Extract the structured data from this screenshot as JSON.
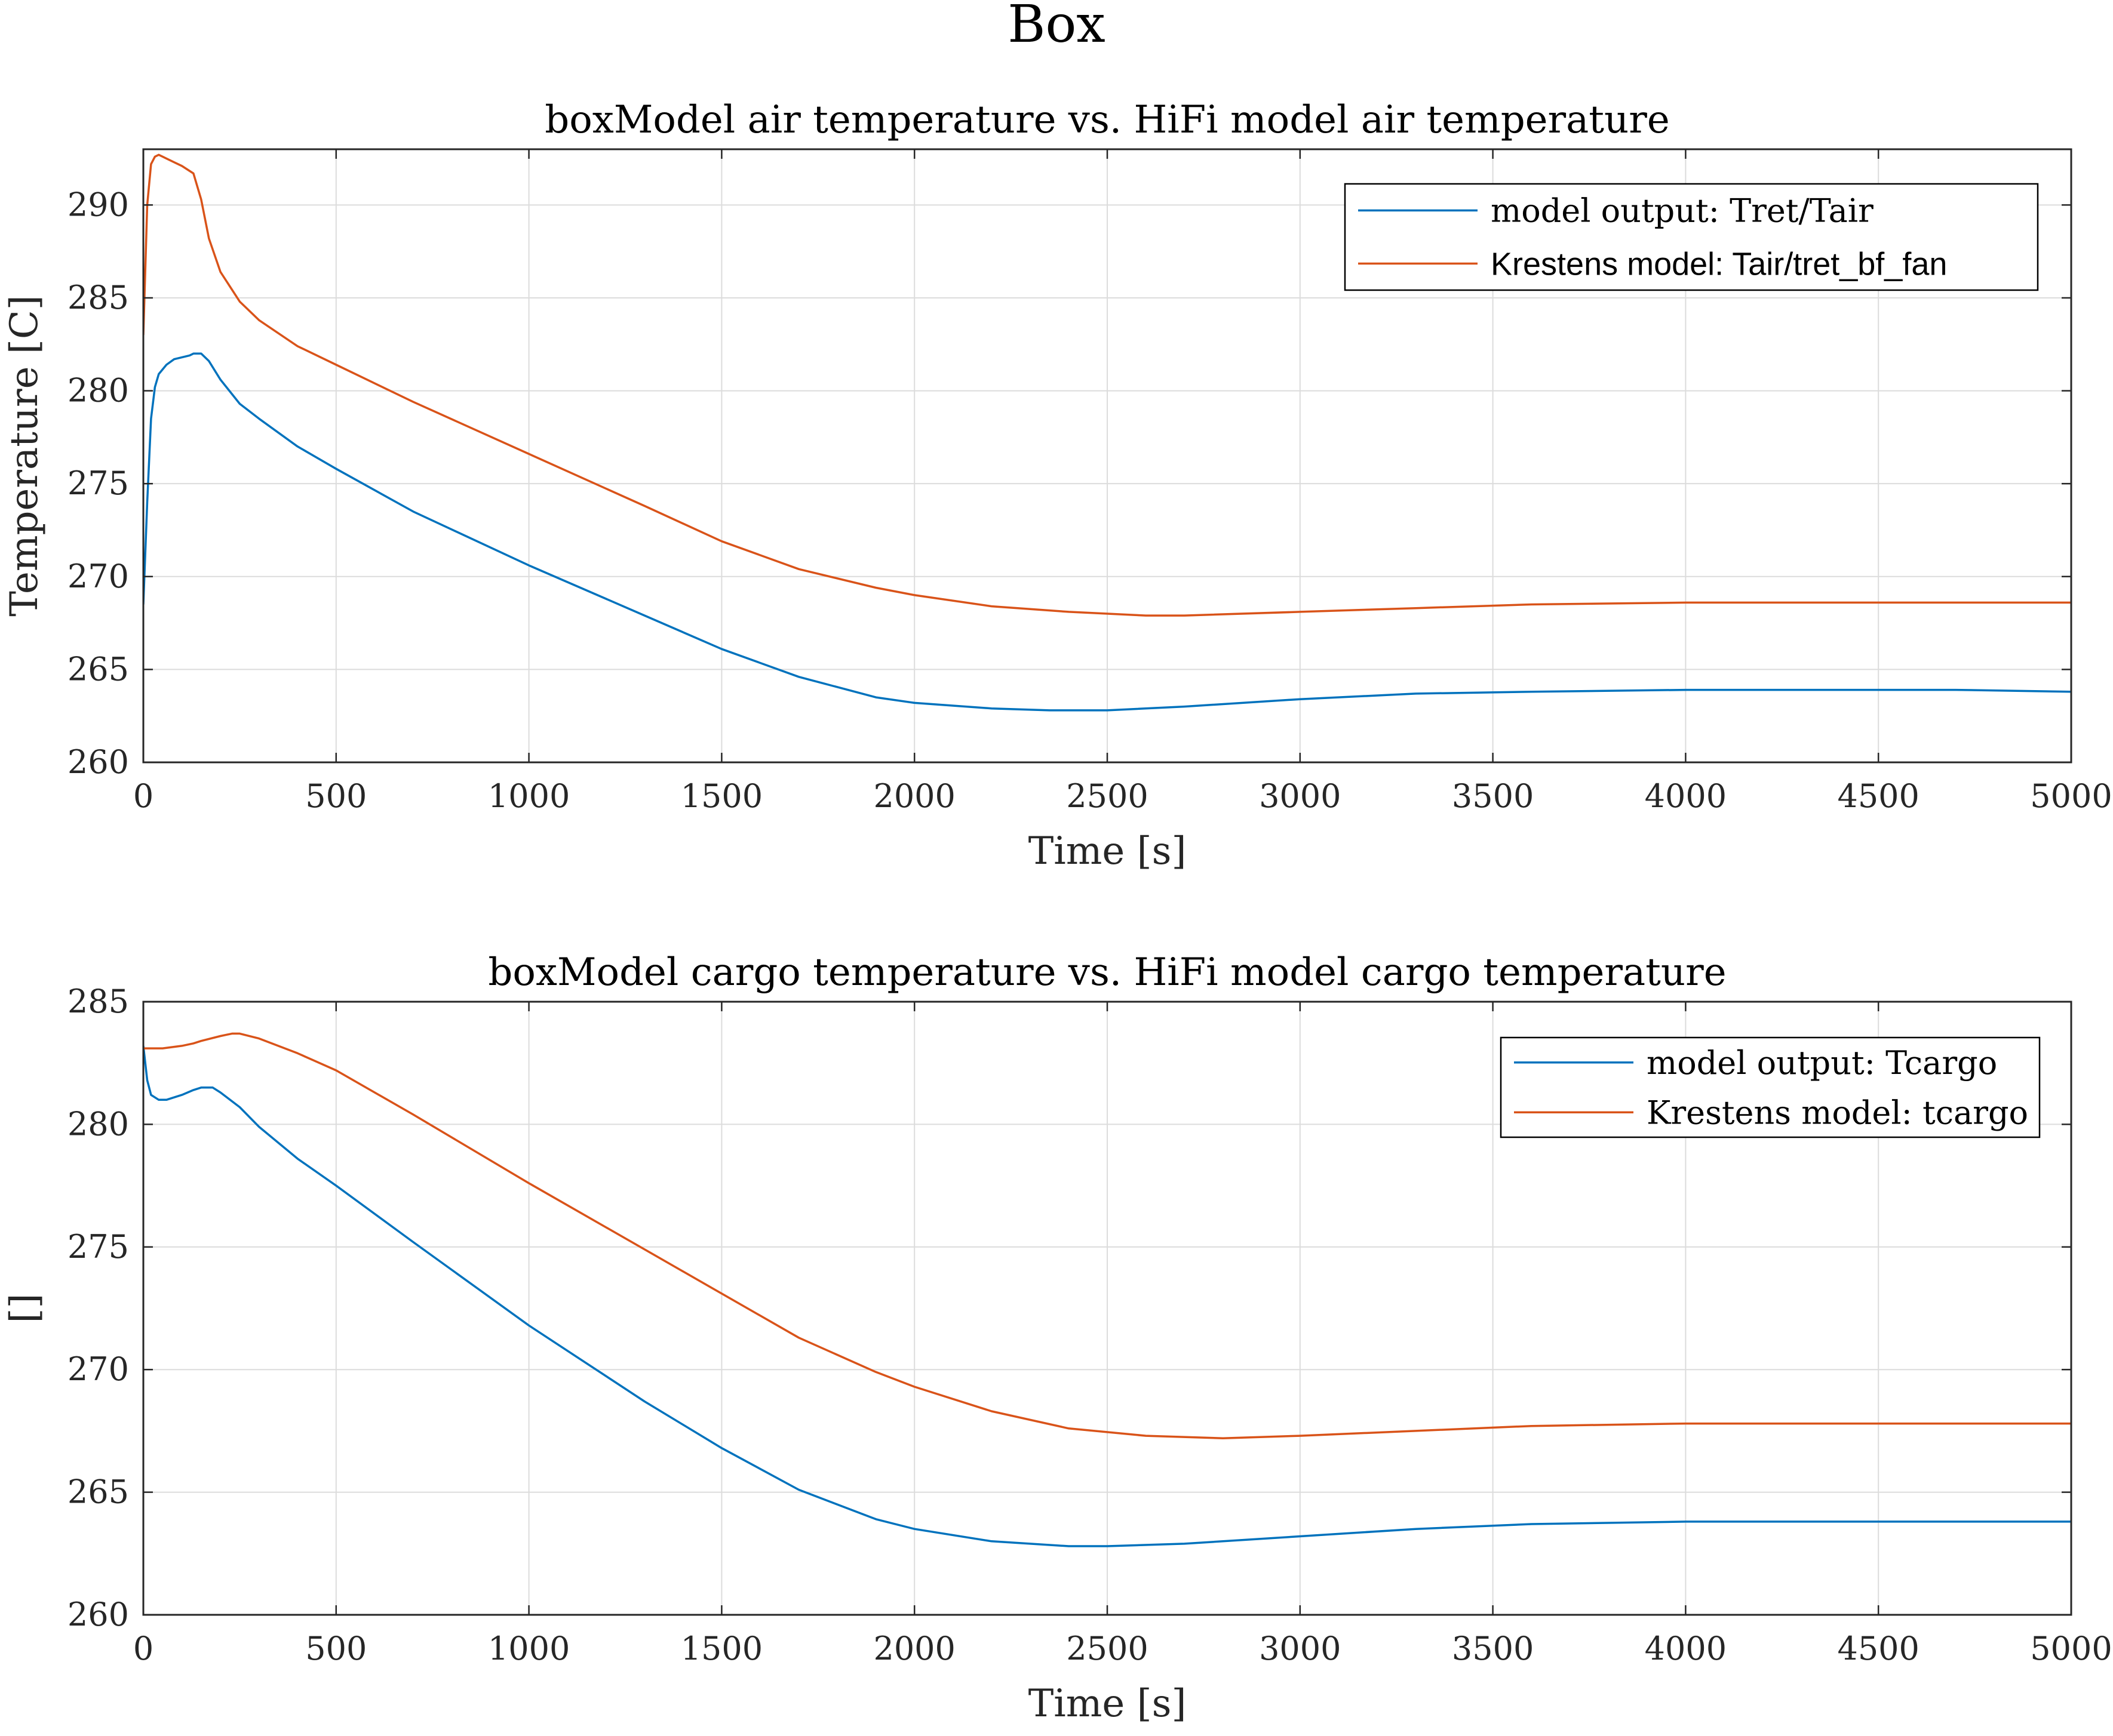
{
  "figure": {
    "suptitle": "Box"
  },
  "colors": {
    "series1": "#0072BD",
    "series2": "#D95319",
    "grid": "#dcdcdc",
    "axis": "#262626"
  },
  "chart_data": [
    {
      "type": "line",
      "title": "boxModel air temperature vs. HiFi model air temperature",
      "xlabel": "Time [s]",
      "ylabel": "Temperature [C]",
      "xlim": [
        0,
        5000
      ],
      "ylim": [
        260,
        293
      ],
      "xticks": [
        0,
        500,
        1000,
        1500,
        2000,
        2500,
        3000,
        3500,
        4000,
        4500,
        5000
      ],
      "yticks": [
        260,
        265,
        270,
        275,
        280,
        285,
        290
      ],
      "grid": true,
      "legend_position": "top-right",
      "series": [
        {
          "name": "model output: Tret/Tair",
          "legend_font": "serif",
          "x": [
            0,
            10,
            20,
            30,
            40,
            60,
            80,
            100,
            120,
            130,
            150,
            170,
            200,
            250,
            300,
            400,
            500,
            700,
            1000,
            1300,
            1500,
            1700,
            1900,
            2000,
            2200,
            2350,
            2500,
            2700,
            3000,
            3300,
            3600,
            4000,
            4300,
            4700,
            5000
          ],
          "y": [
            268.5,
            274.0,
            278.5,
            280.2,
            280.9,
            281.4,
            281.7,
            281.8,
            281.9,
            282.0,
            282.0,
            281.6,
            280.6,
            279.3,
            278.5,
            277.0,
            275.8,
            273.5,
            270.6,
            267.9,
            266.1,
            264.6,
            263.5,
            263.2,
            262.9,
            262.8,
            262.8,
            263.0,
            263.4,
            263.7,
            263.8,
            263.9,
            263.9,
            263.9,
            263.8
          ]
        },
        {
          "name": "Krestens model: Tair/tret_bf_fan",
          "legend_font": "sans",
          "x": [
            0,
            10,
            20,
            30,
            40,
            50,
            60,
            80,
            100,
            130,
            150,
            170,
            200,
            250,
            300,
            400,
            500,
            700,
            1000,
            1300,
            1500,
            1700,
            1900,
            2000,
            2200,
            2400,
            2600,
            2700,
            3000,
            3300,
            3600,
            4000,
            4300,
            4700,
            5000
          ],
          "y": [
            283.0,
            290.0,
            292.2,
            292.6,
            292.7,
            292.6,
            292.5,
            292.3,
            292.1,
            291.7,
            290.3,
            288.2,
            286.4,
            284.8,
            283.8,
            282.4,
            281.4,
            279.4,
            276.6,
            273.8,
            271.9,
            270.4,
            269.4,
            269.0,
            268.4,
            268.1,
            267.9,
            267.9,
            268.1,
            268.3,
            268.5,
            268.6,
            268.6,
            268.6,
            268.6
          ]
        }
      ]
    },
    {
      "type": "line",
      "title": "boxModel cargo temperature vs. HiFi model cargo temperature",
      "xlabel": "Time [s]",
      "ylabel": "[]",
      "xlim": [
        0,
        5000
      ],
      "ylim": [
        260,
        285
      ],
      "xticks": [
        0,
        500,
        1000,
        1500,
        2000,
        2500,
        3000,
        3500,
        4000,
        4500,
        5000
      ],
      "yticks": [
        260,
        265,
        270,
        275,
        280,
        285
      ],
      "grid": true,
      "legend_position": "top-right",
      "series": [
        {
          "name": "model output: Tcargo",
          "legend_font": "serif",
          "x": [
            0,
            10,
            20,
            40,
            60,
            80,
            100,
            130,
            150,
            180,
            200,
            250,
            300,
            400,
            500,
            700,
            1000,
            1300,
            1500,
            1700,
            1900,
            2000,
            2200,
            2400,
            2500,
            2700,
            3000,
            3300,
            3600,
            4000,
            4300,
            4700,
            5000
          ],
          "y": [
            283.2,
            281.8,
            281.2,
            281.0,
            281.0,
            281.1,
            281.2,
            281.4,
            281.5,
            281.5,
            281.3,
            280.7,
            279.9,
            278.6,
            277.5,
            275.2,
            271.8,
            268.7,
            266.8,
            265.1,
            263.9,
            263.5,
            263.0,
            262.8,
            262.8,
            262.9,
            263.2,
            263.5,
            263.7,
            263.8,
            263.8,
            263.8,
            263.8
          ]
        },
        {
          "name": "Krestens model: tcargo",
          "legend_font": "serif",
          "x": [
            0,
            50,
            100,
            130,
            150,
            200,
            230,
            250,
            300,
            400,
            500,
            700,
            1000,
            1300,
            1500,
            1700,
            1900,
            2000,
            2200,
            2400,
            2600,
            2800,
            3000,
            3300,
            3600,
            4000,
            4300,
            4700,
            5000
          ],
          "y": [
            283.1,
            283.1,
            283.2,
            283.3,
            283.4,
            283.6,
            283.7,
            283.7,
            283.5,
            282.9,
            282.2,
            280.4,
            277.6,
            274.9,
            273.1,
            271.3,
            269.9,
            269.3,
            268.3,
            267.6,
            267.3,
            267.2,
            267.3,
            267.5,
            267.7,
            267.8,
            267.8,
            267.8,
            267.8
          ]
        }
      ]
    }
  ]
}
